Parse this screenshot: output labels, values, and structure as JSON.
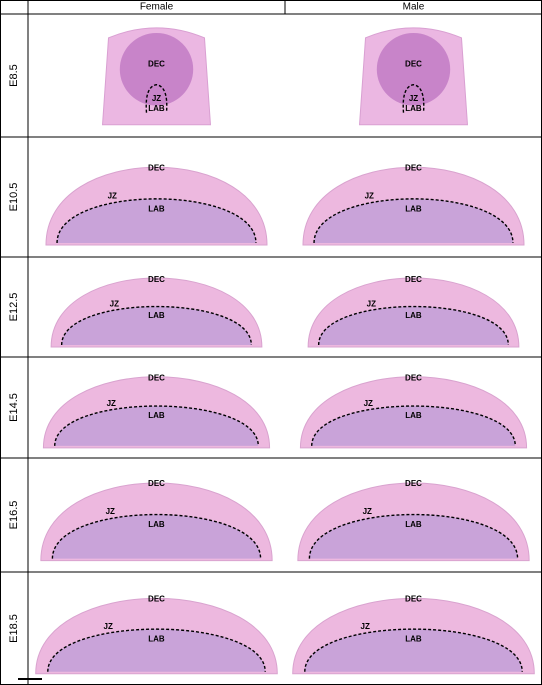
{
  "header": {
    "columns": [
      "Female",
      "Male"
    ]
  },
  "rows": [
    {
      "label": "E8.5",
      "panels": [
        {
          "labels": [
            "DEC",
            "JZ",
            "LAB"
          ]
        },
        {
          "labels": [
            "DEC",
            "JZ",
            "LAB"
          ]
        }
      ]
    },
    {
      "label": "E10.5",
      "panels": [
        {
          "labels": [
            "DEC",
            "JZ",
            "LAB"
          ]
        },
        {
          "labels": [
            "DEC",
            "JZ",
            "LAB"
          ]
        }
      ]
    },
    {
      "label": "E12.5",
      "panels": [
        {
          "labels": [
            "DEC",
            "JZ",
            "LAB"
          ]
        },
        {
          "labels": [
            "DEC",
            "JZ",
            "LAB"
          ]
        }
      ]
    },
    {
      "label": "E14.5",
      "panels": [
        {
          "labels": [
            "DEC",
            "JZ",
            "LAB"
          ]
        },
        {
          "labels": [
            "DEC",
            "JZ",
            "LAB"
          ]
        }
      ]
    },
    {
      "label": "E16.5",
      "panels": [
        {
          "labels": [
            "DEC",
            "JZ",
            "LAB"
          ]
        },
        {
          "labels": [
            "DEC",
            "JZ",
            "LAB"
          ]
        }
      ]
    },
    {
      "label": "E18.5",
      "panels": [
        {
          "labels": [
            "DEC",
            "JZ",
            "LAB"
          ]
        },
        {
          "labels": [
            "DEC",
            "JZ",
            "LAB"
          ]
        }
      ]
    }
  ]
}
